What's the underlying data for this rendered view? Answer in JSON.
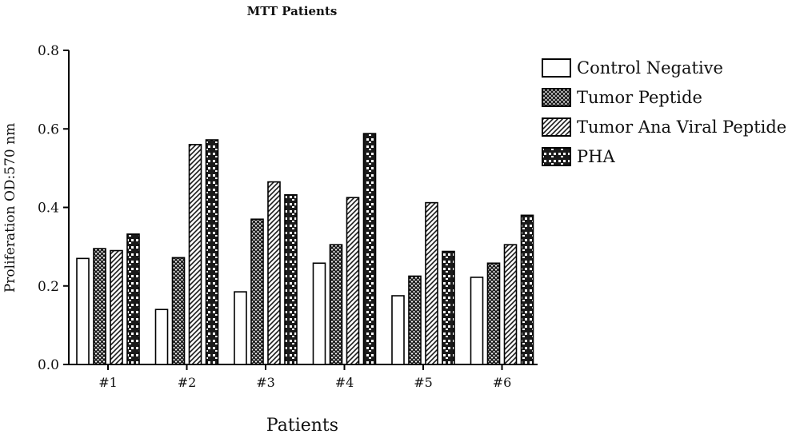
{
  "chart_data": {
    "type": "bar",
    "title": "MTT Patients",
    "xlabel": "Patients",
    "ylabel": "Proliferation OD:570 nm",
    "ylim": [
      0,
      0.8
    ],
    "yticks": [
      0.0,
      0.2,
      0.4,
      0.6,
      0.8
    ],
    "ytick_labels": [
      "0.0",
      "0.2",
      "0.4",
      "0.6",
      "0.8"
    ],
    "categories": [
      "#1",
      "#2",
      "#3",
      "#4",
      "#5",
      "#6"
    ],
    "series": [
      {
        "name": "Control Negative",
        "pattern": "none",
        "values": [
          0.27,
          0.14,
          0.185,
          0.258,
          0.175,
          0.222
        ]
      },
      {
        "name": "Tumor Peptide",
        "pattern": "crosshatch",
        "values": [
          0.295,
          0.272,
          0.37,
          0.305,
          0.225,
          0.258
        ]
      },
      {
        "name": "Tumor Ana Viral Peptide",
        "pattern": "diagonal",
        "values": [
          0.29,
          0.56,
          0.465,
          0.425,
          0.412,
          0.305
        ]
      },
      {
        "name": "PHA",
        "pattern": "brick",
        "values": [
          0.332,
          0.572,
          0.432,
          0.588,
          0.288,
          0.38
        ]
      }
    ],
    "grid": false,
    "legend_position": "top-right",
    "colors": {
      "bar_stroke": "#000000",
      "bar_fill": "#ffffff",
      "pattern_dark": "#1a1a1a"
    }
  }
}
